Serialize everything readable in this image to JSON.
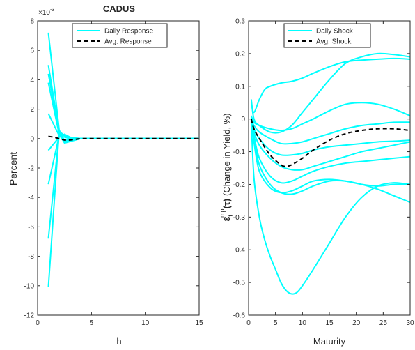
{
  "chart_data": [
    {
      "type": "line",
      "title": "CADUS",
      "xlabel": "h",
      "ylabel": "Percent",
      "exponent_label": "×10",
      "exponent_power": "-3",
      "xlim": [
        0,
        15
      ],
      "ylim": [
        -12,
        8
      ],
      "xticks": [
        0,
        5,
        10,
        15
      ],
      "yticks": [
        -12,
        -10,
        -8,
        -6,
        -4,
        -2,
        0,
        2,
        4,
        6,
        8
      ],
      "grid": false,
      "legend_placement": "top-center",
      "legend": [
        {
          "label": "Daily Response",
          "color": "#00ffff",
          "style": "solid"
        },
        {
          "label": "Avg. Response",
          "color": "#000000",
          "style": "dashed"
        }
      ],
      "daily_series": [
        {
          "x": [
            1,
            2,
            2.5,
            3,
            4,
            5,
            15
          ],
          "y": [
            7.2,
            0.6,
            -0.2,
            -0.1,
            0,
            0,
            0
          ]
        },
        {
          "x": [
            1,
            2,
            2.5,
            3,
            4,
            5,
            15
          ],
          "y": [
            5.0,
            0.5,
            -0.15,
            -0.1,
            0,
            0,
            0
          ]
        },
        {
          "x": [
            1,
            2,
            2.5,
            3,
            4,
            5,
            15
          ],
          "y": [
            4.4,
            0.4,
            -0.1,
            0,
            0,
            0,
            0
          ]
        },
        {
          "x": [
            1,
            2,
            2.5,
            3,
            4,
            5,
            15
          ],
          "y": [
            3.8,
            0.3,
            -0.3,
            -0.2,
            0,
            0,
            0
          ]
        },
        {
          "x": [
            1,
            2,
            2.5,
            3,
            4,
            5,
            15
          ],
          "y": [
            1.7,
            0.2,
            -0.1,
            0,
            0,
            0,
            0
          ]
        },
        {
          "x": [
            1,
            2,
            2.5,
            3,
            4,
            5,
            15
          ],
          "y": [
            -0.8,
            0.1,
            0.3,
            0.1,
            0,
            0,
            0
          ]
        },
        {
          "x": [
            1,
            2,
            2.5,
            3,
            4,
            5,
            15
          ],
          "y": [
            -3.1,
            0.2,
            0.1,
            0,
            0,
            0,
            0
          ]
        },
        {
          "x": [
            1,
            2,
            2.5,
            3,
            4,
            5,
            15
          ],
          "y": [
            -6.8,
            0.3,
            0.2,
            0,
            0,
            0,
            0
          ]
        },
        {
          "x": [
            1,
            2,
            2.5,
            3,
            4,
            5,
            15
          ],
          "y": [
            -10.1,
            0.5,
            0.2,
            0,
            0,
            0,
            0
          ]
        }
      ],
      "avg_series": {
        "x": [
          1,
          1.5,
          2,
          2.5,
          3,
          4,
          5,
          15
        ],
        "y": [
          0.15,
          0.1,
          0.0,
          -0.1,
          -0.1,
          0,
          0,
          0
        ]
      }
    },
    {
      "type": "line",
      "title": "",
      "xlabel": "Maturity",
      "ylabel_main": "(Change in Yield, %)",
      "ylabel_symbol": "ε",
      "ylabel_sup": "mp",
      "ylabel_sub": "t",
      "ylabel_arg": "(τ)",
      "xlim": [
        0,
        30
      ],
      "ylim": [
        -0.6,
        0.3
      ],
      "xticks": [
        0,
        5,
        10,
        15,
        20,
        25,
        30
      ],
      "yticks": [
        -0.6,
        -0.5,
        -0.4,
        -0.3,
        -0.2,
        -0.1,
        0,
        0.1,
        0.2,
        0.3
      ],
      "grid": false,
      "legend_placement": "top-center",
      "legend": [
        {
          "label": "Daily Shock",
          "color": "#00ffff",
          "style": "solid"
        },
        {
          "label": "Avg. Shock",
          "color": "#000000",
          "style": "dashed"
        }
      ],
      "daily_series": [
        {
          "x": [
            0.5,
            1,
            2,
            3,
            4,
            6,
            8,
            10,
            12,
            15,
            18,
            21,
            24,
            27,
            30
          ],
          "y": [
            0.05,
            0.02,
            0.06,
            0.09,
            0.1,
            0.11,
            0.115,
            0.125,
            0.14,
            0.16,
            0.175,
            0.18,
            0.183,
            0.185,
            0.183
          ]
        },
        {
          "x": [
            0.5,
            1,
            2,
            4,
            6,
            8,
            10,
            12,
            15,
            18,
            21,
            24,
            27,
            30
          ],
          "y": [
            0.06,
            0.0,
            -0.02,
            -0.04,
            -0.04,
            -0.02,
            0.02,
            0.06,
            0.12,
            0.17,
            0.19,
            0.2,
            0.197,
            0.19
          ]
        },
        {
          "x": [
            0.5,
            1,
            2,
            4,
            6,
            8,
            10,
            12,
            15,
            18,
            21,
            24,
            27,
            30
          ],
          "y": [
            0.01,
            -0.01,
            -0.02,
            -0.03,
            -0.035,
            -0.03,
            -0.015,
            0.0,
            0.025,
            0.045,
            0.05,
            0.045,
            0.03,
            0.01
          ]
        },
        {
          "x": [
            0.5,
            1,
            2,
            4,
            6,
            8,
            10,
            12,
            15,
            18,
            21,
            24,
            27,
            30
          ],
          "y": [
            0.0,
            -0.02,
            -0.04,
            -0.06,
            -0.075,
            -0.075,
            -0.07,
            -0.06,
            -0.045,
            -0.03,
            -0.02,
            -0.015,
            -0.01,
            -0.01
          ]
        },
        {
          "x": [
            0.5,
            1,
            2,
            4,
            6,
            8,
            10,
            12,
            15,
            18,
            21,
            24,
            27,
            30
          ],
          "y": [
            0.0,
            -0.03,
            -0.06,
            -0.095,
            -0.11,
            -0.11,
            -0.105,
            -0.095,
            -0.085,
            -0.08,
            -0.075,
            -0.07,
            -0.068,
            -0.065
          ]
        },
        {
          "x": [
            0.5,
            1,
            2,
            4,
            6,
            8,
            10,
            12,
            15,
            18,
            21,
            24,
            27,
            30
          ],
          "y": [
            0.0,
            -0.04,
            -0.08,
            -0.12,
            -0.145,
            -0.155,
            -0.155,
            -0.145,
            -0.13,
            -0.115,
            -0.1,
            -0.09,
            -0.08,
            -0.07
          ]
        },
        {
          "x": [
            0.5,
            1,
            2,
            4,
            6,
            8,
            10,
            12,
            15,
            18,
            21,
            24,
            27,
            30
          ],
          "y": [
            0.0,
            -0.05,
            -0.12,
            -0.175,
            -0.195,
            -0.19,
            -0.175,
            -0.16,
            -0.145,
            -0.135,
            -0.13,
            -0.125,
            -0.12,
            -0.115
          ]
        },
        {
          "x": [
            0.5,
            1,
            2,
            4,
            6,
            8,
            10,
            12,
            15,
            18,
            21,
            24,
            27,
            30
          ],
          "y": [
            0.0,
            -0.06,
            -0.14,
            -0.2,
            -0.225,
            -0.23,
            -0.22,
            -0.205,
            -0.19,
            -0.19,
            -0.2,
            -0.215,
            -0.235,
            -0.255
          ]
        },
        {
          "x": [
            0.5,
            1,
            2,
            4,
            6,
            8,
            10,
            12,
            15,
            18,
            21,
            24,
            27,
            30
          ],
          "y": [
            0.0,
            -0.07,
            -0.16,
            -0.21,
            -0.225,
            -0.22,
            -0.205,
            -0.19,
            -0.185,
            -0.19,
            -0.2,
            -0.205,
            -0.2,
            -0.2
          ]
        },
        {
          "x": [
            0.5,
            1,
            2,
            3,
            4,
            5,
            6,
            7,
            8,
            9,
            10,
            12,
            15,
            18,
            21,
            24,
            27,
            30
          ],
          "y": [
            0.0,
            -0.18,
            -0.3,
            -0.37,
            -0.42,
            -0.46,
            -0.5,
            -0.525,
            -0.535,
            -0.53,
            -0.51,
            -0.46,
            -0.38,
            -0.3,
            -0.24,
            -0.205,
            -0.195,
            -0.2
          ]
        }
      ],
      "avg_series": {
        "x": [
          0.5,
          1,
          2,
          4,
          6,
          7,
          8,
          10,
          12,
          15,
          18,
          21,
          24,
          27,
          30
        ],
        "y": [
          0.0,
          -0.03,
          -0.06,
          -0.11,
          -0.14,
          -0.145,
          -0.14,
          -0.12,
          -0.095,
          -0.065,
          -0.045,
          -0.035,
          -0.03,
          -0.03,
          -0.035
        ]
      }
    }
  ]
}
